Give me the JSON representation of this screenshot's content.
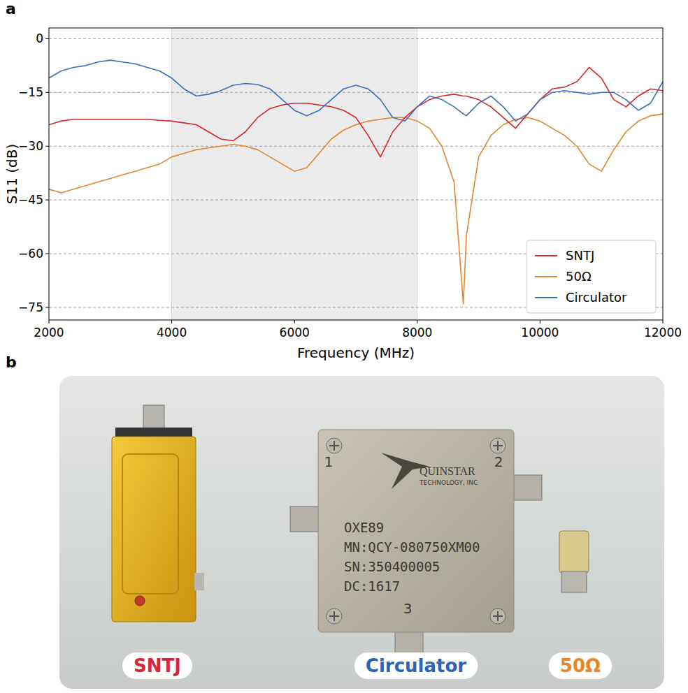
{
  "chart_data": {
    "type": "line",
    "x_label": "Frequency (MHz)",
    "y_label": "S11 (dB)",
    "x": [
      2000,
      2200,
      2400,
      2600,
      2800,
      3000,
      3200,
      3400,
      3600,
      3800,
      4000,
      4200,
      4400,
      4600,
      4800,
      5000,
      5200,
      5400,
      5600,
      5800,
      6000,
      6200,
      6400,
      6600,
      6800,
      7000,
      7200,
      7400,
      7600,
      7800,
      8000,
      8200,
      8400,
      8600,
      8750,
      8800,
      9000,
      9200,
      9400,
      9600,
      9800,
      10000,
      10200,
      10400,
      10600,
      10800,
      11000,
      11200,
      11400,
      11600,
      11800,
      12000
    ],
    "series": [
      {
        "name": "SNTJ",
        "color": "#d62728",
        "values": [
          -24,
          -23,
          -22.5,
          -22.5,
          -22.5,
          -22.5,
          -22.5,
          -22.5,
          -22.5,
          -22.8,
          -23,
          -23.5,
          -24,
          -26,
          -28,
          -28.5,
          -26,
          -22,
          -19.5,
          -18.5,
          -18,
          -18,
          -18.5,
          -19,
          -20,
          -22,
          -27,
          -33,
          -26,
          -22,
          -19,
          -17,
          -16,
          -15.5,
          -16,
          -16,
          -17,
          -19,
          -22,
          -25,
          -21,
          -17,
          -14,
          -13.5,
          -12,
          -8,
          -11,
          -17,
          -19,
          -16,
          -14,
          -14.5
        ]
      },
      {
        "name": "50Ω",
        "color": "#e0862f",
        "values": [
          -42,
          -43,
          -42,
          -41,
          -40,
          -39,
          -38,
          -37,
          -36,
          -35,
          -33,
          -32,
          -31,
          -30.5,
          -30,
          -29.5,
          -30,
          -31,
          -33,
          -35,
          -37,
          -36,
          -32,
          -28,
          -25.5,
          -24,
          -23,
          -22.5,
          -22,
          -22,
          -23,
          -25,
          -30,
          -40,
          -74,
          -55,
          -33,
          -27,
          -24,
          -22.5,
          -22,
          -23,
          -25,
          -27,
          -30,
          -35,
          -37,
          -31,
          -26,
          -23,
          -21.5,
          -21
        ]
      },
      {
        "name": "Circulator",
        "color": "#3b6fc5",
        "values": [
          -11,
          -9,
          -8,
          -7.5,
          -6.5,
          -6,
          -6.5,
          -7,
          -8,
          -9,
          -11,
          -14,
          -16,
          -15.5,
          -14.5,
          -13,
          -12.5,
          -12.8,
          -14,
          -17,
          -20,
          -21.5,
          -20,
          -17,
          -14,
          -13,
          -14,
          -17,
          -22,
          -23,
          -19,
          -16,
          -17,
          -19,
          -21,
          -21.5,
          -18,
          -16,
          -19,
          -23,
          -21,
          -17,
          -15,
          -14.5,
          -15,
          -15.5,
          -15,
          -15,
          -17,
          -20,
          -18,
          -12
        ]
      }
    ],
    "xlim": [
      2000,
      12000
    ],
    "ylim": [
      -78.5,
      3
    ],
    "xticks": [
      2000,
      4000,
      6000,
      8000,
      10000,
      12000
    ],
    "yticks": [
      {
        "value": 0,
        "label": "0"
      },
      {
        "value": -15,
        "label": "−15"
      },
      {
        "value": -30,
        "label": "−30"
      },
      {
        "value": -45,
        "label": "−45"
      },
      {
        "value": -60,
        "label": "−60"
      },
      {
        "value": -75,
        "label": "−75"
      }
    ],
    "grid": true,
    "legend": "lower right",
    "shaded_region": [
      4000,
      8000
    ]
  },
  "figure": {
    "panel_labels": [
      "a",
      "b"
    ],
    "photo": {
      "items": [
        {
          "label": "SNTJ",
          "color": "#d62735"
        },
        {
          "label": "Circulator",
          "color": "#2a63b8"
        },
        {
          "label": "50Ω",
          "color": "#e8852a"
        }
      ],
      "circulator_markings": [
        "QUINSTAR",
        "TECHNOLOGY, INC",
        "OXE89",
        "MN:QCY-080750XM00",
        "SN:350400005",
        "DC:1617"
      ],
      "port_numbers": [
        "1",
        "2",
        "3"
      ]
    }
  }
}
